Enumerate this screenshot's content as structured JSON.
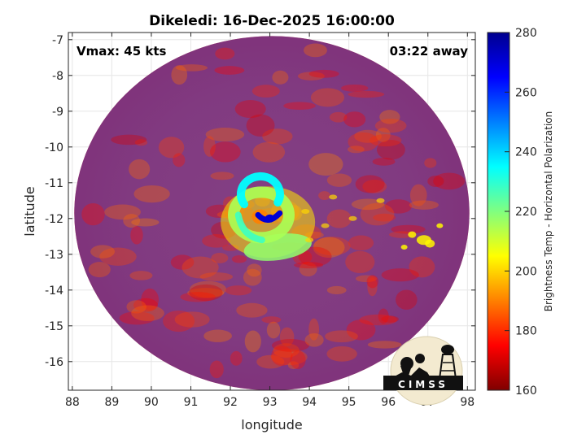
{
  "chart_data": {
    "type": "heatmap",
    "title": "Dikeledi: 16-Dec-2025 16:00:00",
    "xlabel": "longitude",
    "ylabel": "latitude",
    "xlim": [
      87.9,
      98.2
    ],
    "ylim": [
      -16.8,
      -6.8
    ],
    "xticks": [
      88,
      89,
      90,
      91,
      92,
      93,
      94,
      95,
      96,
      97,
      98
    ],
    "yticks": [
      -7,
      -8,
      -9,
      -10,
      -11,
      -12,
      -13,
      -14,
      -15,
      -16
    ],
    "grid": true,
    "colorbar": {
      "label": "Brightness Temp - Horizontal Polarization",
      "range": [
        160,
        280
      ],
      "ticks": [
        160,
        180,
        200,
        220,
        240,
        260,
        280
      ],
      "colormap": "jet"
    },
    "annotations": {
      "vmax": "Vmax: 45 kts",
      "time_away": "03:22 away"
    },
    "swath": {
      "center": [
        93.05,
        -11.85
      ],
      "radius_lon": 5.0,
      "radius_lat": 4.95,
      "background_value": 262
    },
    "storm_center": [
      92.9,
      -12.0
    ],
    "features": [
      {
        "name": "eyewall-core",
        "lon": 93.0,
        "lat": -12.0,
        "value": 170
      },
      {
        "name": "eyewall-ring",
        "lon": 92.7,
        "lat": -11.9,
        "value": 205
      },
      {
        "name": "spiral-band-south",
        "lon": 93.2,
        "lat": -12.8,
        "value": 222
      },
      {
        "name": "convection-east",
        "lon": 96.9,
        "lat": -12.6,
        "value": 236
      }
    ]
  },
  "logo": {
    "text": "CIMSS"
  }
}
